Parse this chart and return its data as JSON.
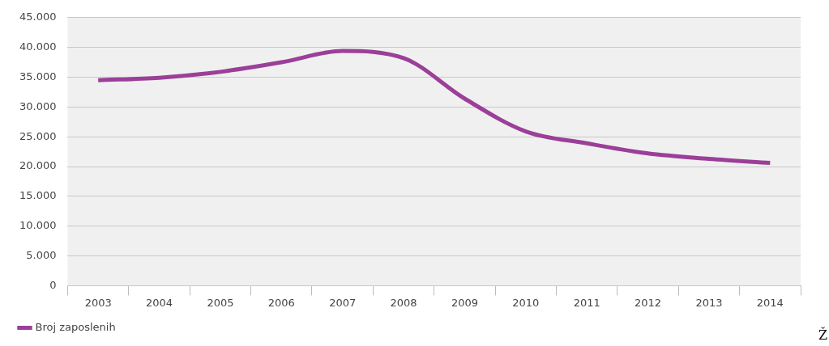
{
  "chart_data": {
    "type": "line",
    "categories": [
      "2003",
      "2004",
      "2005",
      "2006",
      "2007",
      "2008",
      "2009",
      "2010",
      "2011",
      "2012",
      "2013",
      "2014"
    ],
    "series": [
      {
        "name": "Broj zaposlenih",
        "color": "#9b3f98",
        "values": [
          34500,
          34900,
          35900,
          37500,
          39400,
          38200,
          31400,
          25900,
          23900,
          22200,
          21300,
          20600
        ]
      }
    ],
    "ylim": [
      0,
      45000
    ],
    "yticks": [
      {
        "value": 0,
        "label": "0"
      },
      {
        "value": 5000,
        "label": "5.000"
      },
      {
        "value": 10000,
        "label": "10.000"
      },
      {
        "value": 15000,
        "label": "15.000"
      },
      {
        "value": 20000,
        "label": "20.000"
      },
      {
        "value": 25000,
        "label": "25.000"
      },
      {
        "value": 30000,
        "label": "30.000"
      },
      {
        "value": 35000,
        "label": "35.000"
      },
      {
        "value": 40000,
        "label": "40.000"
      },
      {
        "value": 45000,
        "label": "45.000"
      }
    ],
    "grid": "y",
    "legend": "bottom left",
    "marker": "none",
    "line_style": "solid",
    "annotations": [
      "Ž"
    ]
  }
}
